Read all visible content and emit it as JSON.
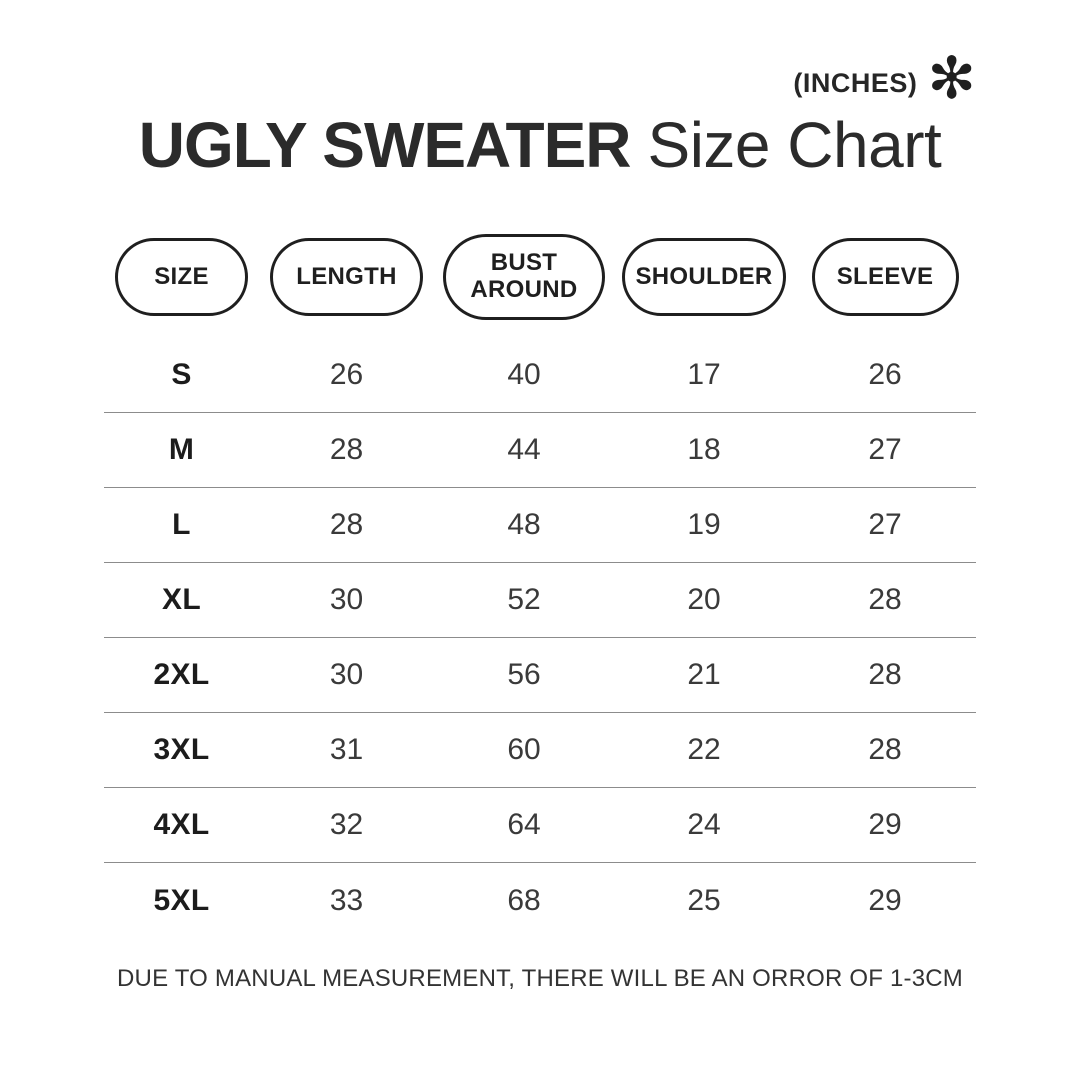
{
  "header": {
    "units_label": "(INCHES)",
    "asterisk_icon": "✻",
    "title_bold": "UGLY SWEATER",
    "title_regular": "Size Chart"
  },
  "chart_data": {
    "type": "table",
    "title": "UGLY SWEATER Size Chart",
    "units": "INCHES",
    "columns": [
      "SIZE",
      "LENGTH",
      "BUST AROUND",
      "SHOULDER",
      "SLEEVE"
    ],
    "rows": [
      {
        "size": "S",
        "length": 26,
        "bust_around": 40,
        "shoulder": 17,
        "sleeve": 26
      },
      {
        "size": "M",
        "length": 28,
        "bust_around": 44,
        "shoulder": 18,
        "sleeve": 27
      },
      {
        "size": "L",
        "length": 28,
        "bust_around": 48,
        "shoulder": 19,
        "sleeve": 27
      },
      {
        "size": "XL",
        "length": 30,
        "bust_around": 52,
        "shoulder": 20,
        "sleeve": 28
      },
      {
        "size": "2XL",
        "length": 30,
        "bust_around": 56,
        "shoulder": 21,
        "sleeve": 28
      },
      {
        "size": "3XL",
        "length": 31,
        "bust_around": 60,
        "shoulder": 22,
        "sleeve": 28
      },
      {
        "size": "4XL",
        "length": 32,
        "bust_around": 64,
        "shoulder": 24,
        "sleeve": 29
      },
      {
        "size": "5XL",
        "length": 33,
        "bust_around": 68,
        "shoulder": 25,
        "sleeve": 29
      }
    ]
  },
  "footer": {
    "note": "DUE TO MANUAL MEASUREMENT, THERE WILL BE AN ORROR OF 1-3CM"
  },
  "colors": {
    "background": "#ffffff",
    "text_dark": "#262626",
    "divider": "#8c8c8c"
  }
}
